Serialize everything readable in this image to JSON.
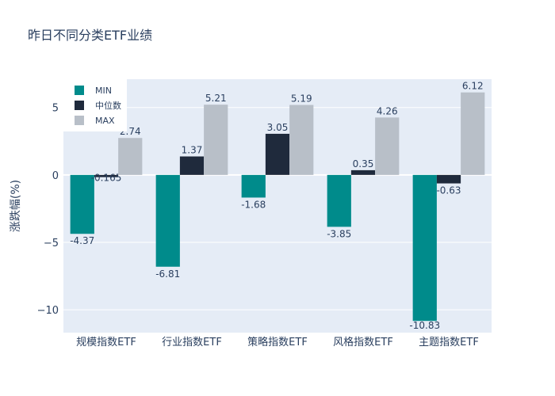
{
  "chart_data": {
    "type": "bar",
    "title": "昨日不同分类ETF业绩",
    "xlabel": "",
    "ylabel": "涨跌幅(%)",
    "ylim": [
      -11.7,
      7.1
    ],
    "yticks": [
      -10,
      -5,
      0,
      5
    ],
    "categories": [
      "规模指数ETF",
      "行业指数ETF",
      "策略指数ETF",
      "风格指数ETF",
      "主题指数ETF"
    ],
    "series": [
      {
        "name": "MIN",
        "color": "#008b8b",
        "values": [
          -4.37,
          -6.81,
          -1.68,
          -3.85,
          -10.83
        ],
        "labels": [
          "-4.37",
          "-6.81",
          "-1.68",
          "-3.85",
          "-10.83"
        ]
      },
      {
        "name": "中位数",
        "color": "#1f2a3c",
        "values": [
          -0.165,
          1.37,
          3.05,
          0.35,
          -0.63
        ],
        "labels": [
          "-0.165",
          "1.37",
          "3.05",
          "0.35",
          "-0.63"
        ]
      },
      {
        "name": "MAX",
        "color": "#b8bfc8",
        "values": [
          2.74,
          5.21,
          5.19,
          4.26,
          6.12
        ],
        "labels": [
          "2.74",
          "5.21",
          "5.19",
          "4.26",
          "6.12"
        ]
      }
    ],
    "legend_position": "top-left",
    "grid": true
  }
}
